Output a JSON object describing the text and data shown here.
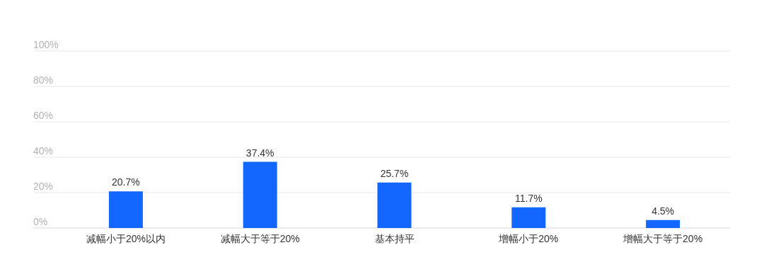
{
  "chart_data": {
    "type": "bar",
    "categories": [
      "减幅小于20%以内",
      "减幅大于等于20%",
      "基本持平",
      "增幅小于20%",
      "增幅大于等于20%"
    ],
    "values": [
      20.7,
      37.4,
      25.7,
      11.7,
      4.5
    ],
    "value_labels": [
      "20.7%",
      "37.4%",
      "25.7%",
      "11.7%",
      "4.5%"
    ],
    "color": "#1366fe",
    "ylim": [
      0,
      100
    ],
    "yticks": [
      {
        "value": 0,
        "label": "0%"
      },
      {
        "value": 20,
        "label": "20%"
      },
      {
        "value": 40,
        "label": "40%"
      },
      {
        "value": 60,
        "label": "60%"
      },
      {
        "value": 80,
        "label": "80%"
      },
      {
        "value": 100,
        "label": "100%"
      }
    ],
    "grid": "y"
  }
}
